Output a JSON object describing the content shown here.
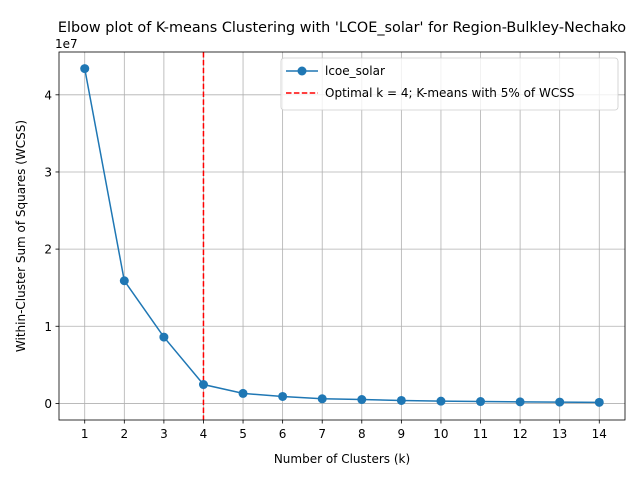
{
  "chart_data": {
    "type": "line",
    "title": "Elbow plot of K-means Clustering with 'LCOE_solar' for Region-Bulkley-Nechako",
    "xlabel": "Number of Clusters (k)",
    "ylabel": "Within-Cluster Sum of Squares (WCSS)",
    "y_offset_label": "1e7",
    "x": [
      1,
      2,
      3,
      4,
      5,
      6,
      7,
      8,
      9,
      10,
      11,
      12,
      13,
      14
    ],
    "x_ticks": [
      "1",
      "2",
      "3",
      "4",
      "5",
      "6",
      "7",
      "8",
      "9",
      "10",
      "11",
      "12",
      "13",
      "14"
    ],
    "y_ticks": [
      "0",
      "1",
      "2",
      "3",
      "4"
    ],
    "y_tick_values": [
      0,
      10000000,
      20000000,
      30000000,
      40000000
    ],
    "xlim": [
      0.35,
      14.65
    ],
    "ylim": [
      -2150000,
      45550000
    ],
    "grid": true,
    "legend_position": "top-right",
    "series": [
      {
        "name": "lcoe_solar",
        "color": "#1f77b4",
        "values": [
          43400000,
          15900000,
          8600000,
          2450000,
          1300000,
          900000,
          600000,
          500000,
          380000,
          290000,
          240000,
          200000,
          170000,
          140000
        ]
      }
    ],
    "vline": {
      "x": 4,
      "label": "Optimal k = 4; K-means with 5% of WCSS",
      "color": "#ff0000"
    }
  }
}
